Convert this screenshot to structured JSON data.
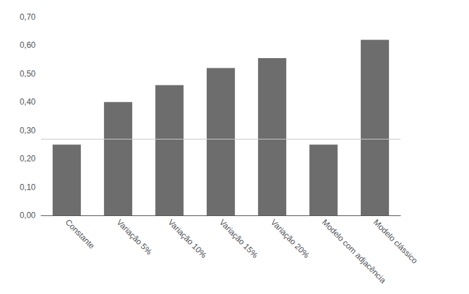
{
  "chart_data": {
    "type": "bar",
    "categories": [
      "Constante",
      "Variação 5%",
      "Variação 10%",
      "Variação 15%",
      "Variação 20%",
      "Modelo com adjacência",
      "Modelo clássico"
    ],
    "values": [
      0.25,
      0.4,
      0.46,
      0.52,
      0.555,
      0.25,
      0.62
    ],
    "color": "#6d6d6d",
    "reference_line": {
      "y": 0.27,
      "color": "#c8c8c8"
    },
    "ylim": [
      0.0,
      0.7
    ],
    "yticks": [
      {
        "value": 0.0,
        "label": "0,00"
      },
      {
        "value": 0.1,
        "label": "0,10"
      },
      {
        "value": 0.2,
        "label": "0,20"
      },
      {
        "value": 0.3,
        "label": "0,30"
      },
      {
        "value": 0.4,
        "label": "0,40"
      },
      {
        "value": 0.5,
        "label": "0,50"
      },
      {
        "value": 0.6,
        "label": "0,60"
      },
      {
        "value": 0.7,
        "label": "0,70"
      }
    ],
    "grid": false
  }
}
